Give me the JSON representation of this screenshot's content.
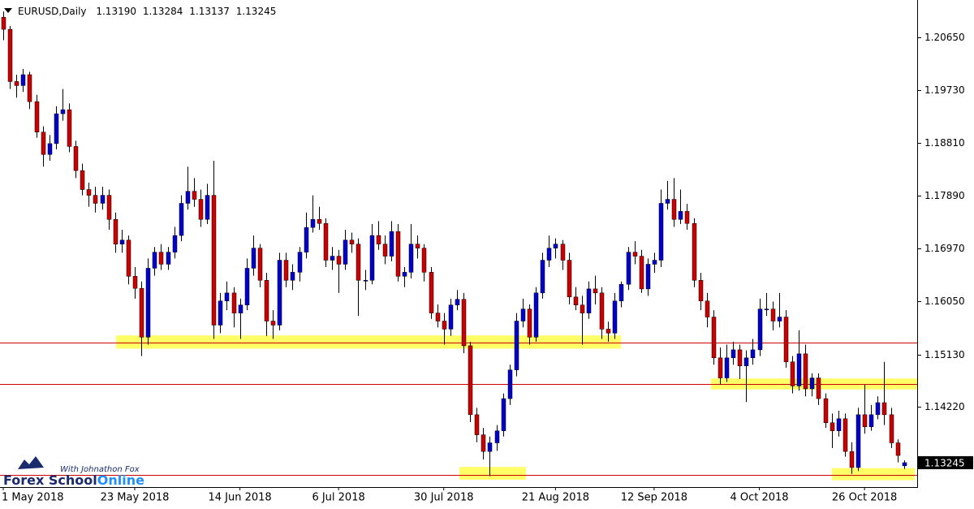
{
  "chart_data": {
    "type": "candlestick",
    "symbol": "EURUSD,Daily",
    "header_labels": [
      "1.13190",
      "1.13284",
      "1.13137",
      "1.13245"
    ],
    "up_color": "#0000cc",
    "down_color": "#cc0000",
    "level_color": "#cc0000",
    "zone_color": "#ffff66",
    "ylim": [
      1.1282,
      1.213
    ],
    "yticks": [
      {
        "value": 1.2065,
        "label": "1.20650"
      },
      {
        "value": 1.1973,
        "label": "1.19730"
      },
      {
        "value": 1.1881,
        "label": "1.18810"
      },
      {
        "value": 1.1789,
        "label": "1.17890"
      },
      {
        "value": 1.1697,
        "label": "1.16970"
      },
      {
        "value": 1.1605,
        "label": "1.16050"
      },
      {
        "value": 1.1513,
        "label": "1.15130"
      },
      {
        "value": 1.1422,
        "label": "1.14220"
      }
    ],
    "levels": [
      1.1534,
      1.1462,
      1.1303
    ],
    "zones": [
      {
        "from": 1.1546,
        "to": 1.1523
      },
      {
        "from": 1.1471,
        "to": 1.1452
      },
      {
        "from": 1.1317,
        "to": 1.1295
      },
      {
        "from": 1.1315,
        "to": 1.1294
      }
    ],
    "brand": [
      "Forex School",
      "Online"
    ],
    "tagline": "With Johnathon Fox",
    "categories": [
      "1 May 2018",
      null,
      null,
      null,
      null,
      null,
      null,
      null,
      null,
      null,
      null,
      null,
      null,
      null,
      null,
      null,
      null,
      null,
      null,
      null,
      "23 May 2018",
      null,
      null,
      null,
      null,
      null,
      null,
      null,
      null,
      null,
      null,
      null,
      null,
      null,
      null,
      null,
      "14 Jun 2018",
      null,
      null,
      null,
      null,
      null,
      null,
      null,
      null,
      null,
      null,
      null,
      null,
      null,
      null,
      "6 Jul 2018",
      null,
      null,
      null,
      null,
      null,
      null,
      null,
      null,
      null,
      null,
      null,
      null,
      null,
      null,
      null,
      "30 Jul 2018",
      null,
      null,
      null,
      null,
      null,
      null,
      null,
      null,
      null,
      null,
      null,
      null,
      null,
      null,
      null,
      null,
      "21 Aug 2018",
      null,
      null,
      null,
      null,
      null,
      null,
      null,
      null,
      null,
      null,
      null,
      null,
      null,
      null,
      "12 Sep 2018",
      null,
      null,
      null,
      null,
      null,
      null,
      null,
      null,
      null,
      null,
      null,
      null,
      null,
      null,
      null,
      "4 Oct 2018",
      null,
      null,
      null,
      null,
      null,
      null,
      null,
      null,
      null,
      null,
      null,
      null,
      null,
      null,
      null,
      "26 Oct 2018",
      null,
      null,
      null,
      null,
      null,
      null
    ],
    "candles": [
      [
        1.21,
        1.211,
        1.206,
        1.2079
      ],
      [
        1.2079,
        1.2085,
        1.1975,
        1.1988
      ],
      [
        1.1988,
        1.2,
        1.196,
        1.1981
      ],
      [
        1.1981,
        1.201,
        1.197,
        1.2
      ],
      [
        1.2,
        1.2005,
        1.194,
        1.1953
      ],
      [
        1.1953,
        1.1965,
        1.189,
        1.19
      ],
      [
        1.19,
        1.191,
        1.184,
        1.1861
      ],
      [
        1.1861,
        1.1895,
        1.185,
        1.188
      ],
      [
        1.188,
        1.1945,
        1.187,
        1.1932
      ],
      [
        1.1932,
        1.1975,
        1.192,
        1.1939
      ],
      [
        1.1939,
        1.195,
        1.1865,
        1.1875
      ],
      [
        1.1875,
        1.1885,
        1.182,
        1.1833
      ],
      [
        1.1833,
        1.1845,
        1.179,
        1.18
      ],
      [
        1.18,
        1.1812,
        1.177,
        1.179
      ],
      [
        1.179,
        1.1805,
        1.176,
        1.1776
      ],
      [
        1.1776,
        1.1805,
        1.1765,
        1.179
      ],
      [
        1.179,
        1.18,
        1.173,
        1.1748
      ],
      [
        1.1748,
        1.176,
        1.169,
        1.1705
      ],
      [
        1.1705,
        1.173,
        1.169,
        1.1712
      ],
      [
        1.1712,
        1.172,
        1.1635,
        1.1649
      ],
      [
        1.1649,
        1.1665,
        1.161,
        1.1628
      ],
      [
        1.1628,
        1.164,
        1.151,
        1.1543
      ],
      [
        1.1543,
        1.168,
        1.153,
        1.1663
      ],
      [
        1.1663,
        1.17,
        1.165,
        1.1691
      ],
      [
        1.1691,
        1.1705,
        1.166,
        1.167
      ],
      [
        1.167,
        1.17,
        1.166,
        1.1691
      ],
      [
        1.1691,
        1.1735,
        1.168,
        1.172
      ],
      [
        1.172,
        1.179,
        1.171,
        1.1776
      ],
      [
        1.1776,
        1.184,
        1.1765,
        1.1797
      ],
      [
        1.1797,
        1.182,
        1.177,
        1.1783
      ],
      [
        1.1783,
        1.18,
        1.1735,
        1.1748
      ],
      [
        1.1748,
        1.181,
        1.174,
        1.179
      ],
      [
        1.179,
        1.185,
        1.154,
        1.1564
      ],
      [
        1.1564,
        1.162,
        1.155,
        1.1606
      ],
      [
        1.1606,
        1.164,
        1.159,
        1.162
      ],
      [
        1.162,
        1.163,
        1.156,
        1.1585
      ],
      [
        1.1585,
        1.161,
        1.154,
        1.1599
      ],
      [
        1.1599,
        1.168,
        1.159,
        1.1663
      ],
      [
        1.1663,
        1.172,
        1.165,
        1.1698
      ],
      [
        1.1698,
        1.1705,
        1.163,
        1.1642
      ],
      [
        1.1642,
        1.1655,
        1.1545,
        1.1571
      ],
      [
        1.1571,
        1.159,
        1.154,
        1.1564
      ],
      [
        1.1564,
        1.169,
        1.1555,
        1.1677
      ],
      [
        1.1677,
        1.169,
        1.163,
        1.1642
      ],
      [
        1.1642,
        1.167,
        1.1625,
        1.1656
      ],
      [
        1.1656,
        1.17,
        1.164,
        1.1691
      ],
      [
        1.1691,
        1.176,
        1.168,
        1.1734
      ],
      [
        1.1734,
        1.179,
        1.1725,
        1.1748
      ],
      [
        1.1748,
        1.177,
        1.173,
        1.1741
      ],
      [
        1.1741,
        1.175,
        1.1665,
        1.1677
      ],
      [
        1.1677,
        1.17,
        1.166,
        1.1684
      ],
      [
        1.1684,
        1.1695,
        1.162,
        1.167
      ],
      [
        1.167,
        1.173,
        1.166,
        1.1712
      ],
      [
        1.1712,
        1.1725,
        1.169,
        1.1705
      ],
      [
        1.1705,
        1.1715,
        1.158,
        1.1642
      ],
      [
        1.1642,
        1.166,
        1.1625,
        1.1642
      ],
      [
        1.1642,
        1.174,
        1.1635,
        1.172
      ],
      [
        1.172,
        1.1745,
        1.1695,
        1.1705
      ],
      [
        1.1705,
        1.172,
        1.167,
        1.1684
      ],
      [
        1.1684,
        1.1745,
        1.1675,
        1.1727
      ],
      [
        1.1727,
        1.174,
        1.164,
        1.1649
      ],
      [
        1.1649,
        1.1665,
        1.163,
        1.1656
      ],
      [
        1.1656,
        1.174,
        1.1645,
        1.1705
      ],
      [
        1.1705,
        1.172,
        1.168,
        1.1698
      ],
      [
        1.1698,
        1.1705,
        1.164,
        1.1656
      ],
      [
        1.1656,
        1.1665,
        1.1575,
        1.1585
      ],
      [
        1.1585,
        1.16,
        1.156,
        1.1571
      ],
      [
        1.1571,
        1.1585,
        1.153,
        1.1557
      ],
      [
        1.1557,
        1.161,
        1.1545,
        1.1599
      ],
      [
        1.1599,
        1.1625,
        1.159,
        1.1609
      ],
      [
        1.1609,
        1.162,
        1.1515,
        1.1528
      ],
      [
        1.1528,
        1.1535,
        1.1395,
        1.1408
      ],
      [
        1.1408,
        1.142,
        1.136,
        1.1373
      ],
      [
        1.1373,
        1.1385,
        1.133,
        1.1344
      ],
      [
        1.1344,
        1.137,
        1.1301,
        1.1359
      ],
      [
        1.1359,
        1.139,
        1.1345,
        1.138
      ],
      [
        1.138,
        1.1445,
        1.137,
        1.1436
      ],
      [
        1.1436,
        1.1495,
        1.1425,
        1.1486
      ],
      [
        1.1486,
        1.1585,
        1.1475,
        1.1571
      ],
      [
        1.1571,
        1.161,
        1.156,
        1.1592
      ],
      [
        1.1592,
        1.16,
        1.153,
        1.1543
      ],
      [
        1.1543,
        1.163,
        1.1535,
        1.162
      ],
      [
        1.162,
        1.169,
        1.161,
        1.1677
      ],
      [
        1.1677,
        1.172,
        1.1665,
        1.1698
      ],
      [
        1.1698,
        1.1715,
        1.168,
        1.1705
      ],
      [
        1.1705,
        1.1712,
        1.166,
        1.1677
      ],
      [
        1.1677,
        1.169,
        1.16,
        1.1613
      ],
      [
        1.1613,
        1.163,
        1.159,
        1.1599
      ],
      [
        1.1599,
        1.1615,
        1.153,
        1.1585
      ],
      [
        1.1585,
        1.164,
        1.1575,
        1.1627
      ],
      [
        1.1627,
        1.165,
        1.16,
        1.162
      ],
      [
        1.162,
        1.163,
        1.154,
        1.1557
      ],
      [
        1.1557,
        1.157,
        1.1535,
        1.155
      ],
      [
        1.155,
        1.162,
        1.154,
        1.1606
      ],
      [
        1.1606,
        1.164,
        1.1595,
        1.1635
      ],
      [
        1.1635,
        1.17,
        1.1625,
        1.1691
      ],
      [
        1.1691,
        1.171,
        1.167,
        1.1684
      ],
      [
        1.1684,
        1.1695,
        1.162,
        1.1627
      ],
      [
        1.1627,
        1.168,
        1.1615,
        1.167
      ],
      [
        1.167,
        1.169,
        1.1655,
        1.1677
      ],
      [
        1.1677,
        1.18,
        1.1665,
        1.1776
      ],
      [
        1.1776,
        1.1815,
        1.1765,
        1.1783
      ],
      [
        1.1783,
        1.182,
        1.1735,
        1.1748
      ],
      [
        1.1748,
        1.18,
        1.174,
        1.1762
      ],
      [
        1.1762,
        1.1775,
        1.173,
        1.1741
      ],
      [
        1.1741,
        1.175,
        1.163,
        1.1642
      ],
      [
        1.1642,
        1.1655,
        1.159,
        1.1606
      ],
      [
        1.1606,
        1.162,
        1.156,
        1.1578
      ],
      [
        1.1578,
        1.159,
        1.1495,
        1.1507
      ],
      [
        1.1507,
        1.1525,
        1.146,
        1.1472
      ],
      [
        1.1472,
        1.153,
        1.1465,
        1.1507
      ],
      [
        1.1507,
        1.1535,
        1.1495,
        1.1521
      ],
      [
        1.1521,
        1.153,
        1.147,
        1.1493
      ],
      [
        1.1493,
        1.152,
        1.143,
        1.1507
      ],
      [
        1.1507,
        1.154,
        1.1495,
        1.1521
      ],
      [
        1.1521,
        1.161,
        1.151,
        1.1592
      ],
      [
        1.1592,
        1.162,
        1.158,
        1.1592
      ],
      [
        1.1592,
        1.1605,
        1.1555,
        1.1571
      ],
      [
        1.1571,
        1.162,
        1.156,
        1.1578
      ],
      [
        1.1578,
        1.159,
        1.149,
        1.15
      ],
      [
        1.15,
        1.151,
        1.1445,
        1.1458
      ],
      [
        1.1458,
        1.1555,
        1.145,
        1.1514
      ],
      [
        1.1514,
        1.153,
        1.144,
        1.1453
      ],
      [
        1.1453,
        1.148,
        1.144,
        1.1472
      ],
      [
        1.1472,
        1.148,
        1.1425,
        1.1436
      ],
      [
        1.1436,
        1.1445,
        1.1385,
        1.1394
      ],
      [
        1.1394,
        1.141,
        1.135,
        1.138
      ],
      [
        1.138,
        1.1415,
        1.137,
        1.1401
      ],
      [
        1.1401,
        1.141,
        1.1335,
        1.1344
      ],
      [
        1.1344,
        1.136,
        1.1305,
        1.1316
      ],
      [
        1.1316,
        1.142,
        1.131,
        1.1408
      ],
      [
        1.1408,
        1.146,
        1.1375,
        1.1387
      ],
      [
        1.1387,
        1.1425,
        1.138,
        1.1408
      ],
      [
        1.1408,
        1.144,
        1.14,
        1.1429
      ],
      [
        1.1429,
        1.15,
        1.139,
        1.1408
      ],
      [
        1.1408,
        1.142,
        1.135,
        1.1359
      ],
      [
        1.1359,
        1.1365,
        1.1325,
        1.1337
      ],
      [
        1.1319,
        1.13284,
        1.13137,
        1.13245
      ]
    ]
  }
}
